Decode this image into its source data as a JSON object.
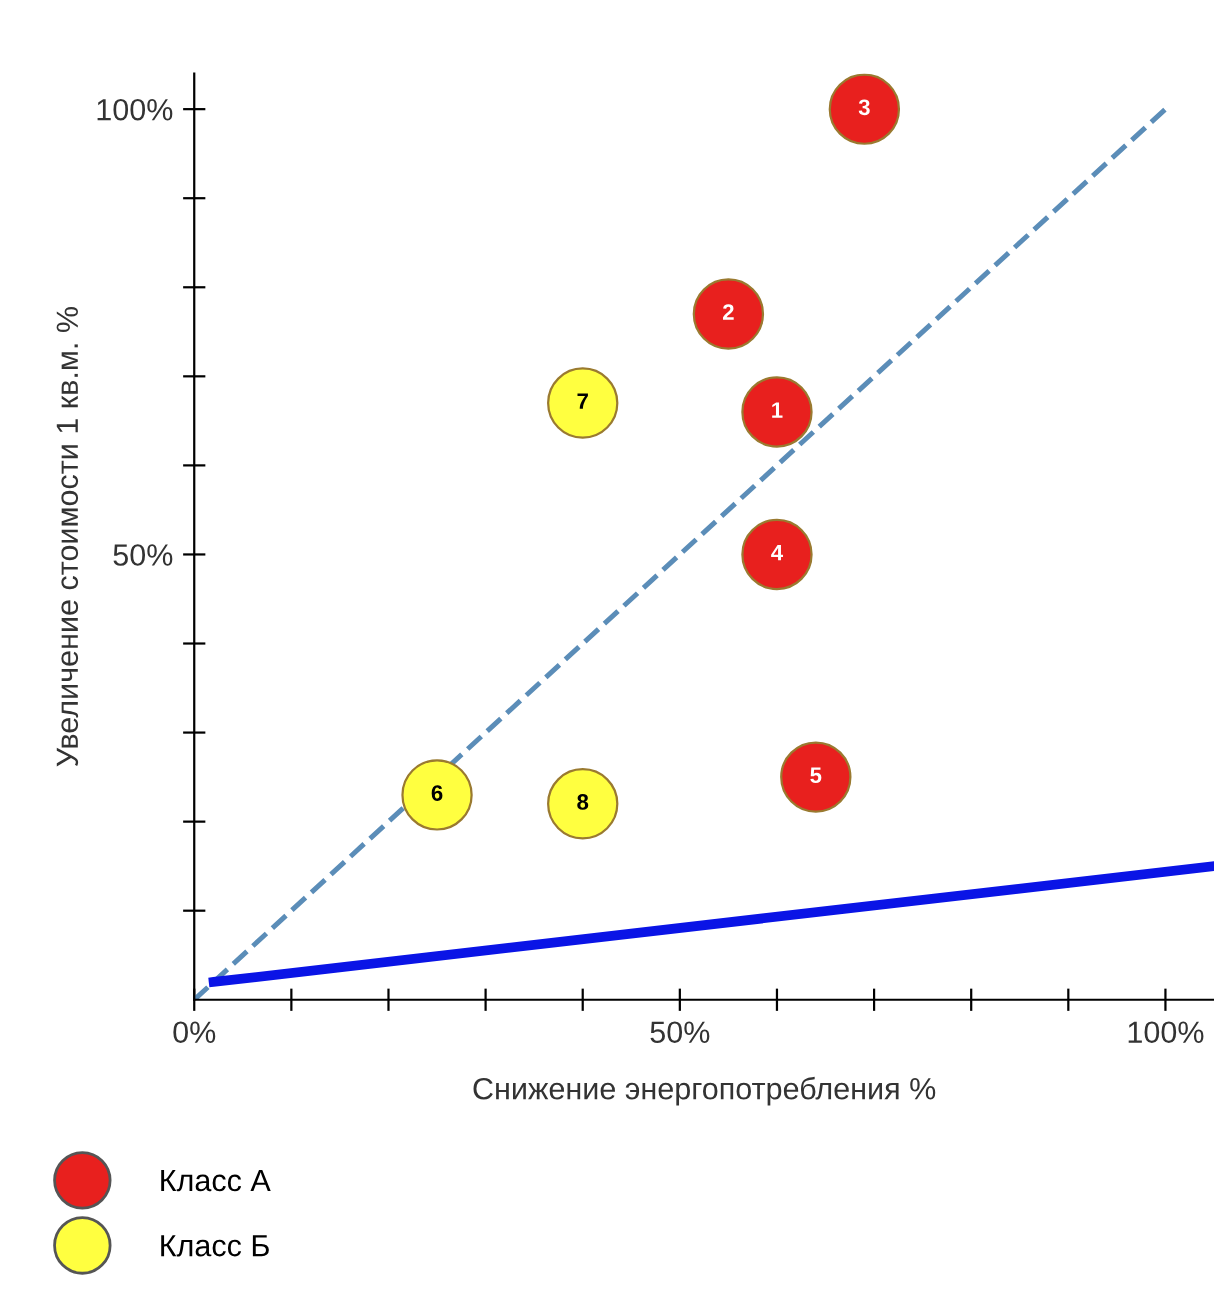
{
  "chart_data": {
    "type": "scatter",
    "xlabel": "Снижение энергопотребления %",
    "ylabel": "Увеличение стоимости 1 кв.м. %",
    "xlim": [
      0,
      105
    ],
    "ylim": [
      0,
      104
    ],
    "xticks": [
      {
        "value": 0,
        "label": "0%"
      },
      {
        "value": 10,
        "label": null
      },
      {
        "value": 20,
        "label": null
      },
      {
        "value": 30,
        "label": null
      },
      {
        "value": 40,
        "label": null
      },
      {
        "value": 50,
        "label": "50%"
      },
      {
        "value": 60,
        "label": null
      },
      {
        "value": 70,
        "label": null
      },
      {
        "value": 80,
        "label": null
      },
      {
        "value": 90,
        "label": null
      },
      {
        "value": 100,
        "label": "100%"
      }
    ],
    "yticks": [
      {
        "value": 10,
        "label": null
      },
      {
        "value": 20,
        "label": null
      },
      {
        "value": 30,
        "label": null
      },
      {
        "value": 40,
        "label": null
      },
      {
        "value": 50,
        "label": "50%"
      },
      {
        "value": 60,
        "label": null
      },
      {
        "value": 70,
        "label": null
      },
      {
        "value": 80,
        "label": null
      },
      {
        "value": 90,
        "label": null
      },
      {
        "value": 100,
        "label": "100%"
      }
    ],
    "annotations": [
      {
        "text": "1",
        "x": 60,
        "y": 66
      },
      {
        "text": "2",
        "x": 55,
        "y": 77
      },
      {
        "text": "3",
        "x": 69,
        "y": 100
      },
      {
        "text": "4",
        "x": 60,
        "y": 50
      },
      {
        "text": "5",
        "x": 64,
        "y": 25
      },
      {
        "text": "6",
        "x": 25,
        "y": 23
      },
      {
        "text": "7",
        "x": 40,
        "y": 67
      },
      {
        "text": "8",
        "x": 40,
        "y": 22
      }
    ],
    "grid": false,
    "legend": "bottom left",
    "marker": "circle",
    "series": [
      {
        "name": "Класс А",
        "color": "#e8201e",
        "x": [
          60,
          55,
          69,
          60,
          64
        ],
        "values": [
          66,
          77,
          100,
          50,
          25
        ]
      },
      {
        "name": "Класс Б",
        "color": "#ffff40",
        "x": [
          25,
          40,
          40
        ],
        "values": [
          23,
          67,
          22
        ]
      },
      {
        "type": "line",
        "color": "#5b8db8",
        "line_style": "dashed",
        "marker": "none",
        "x": [
          0,
          100
        ],
        "values": [
          0,
          100
        ]
      },
      {
        "type": "line",
        "color": "#0a14e6",
        "line_style": "solid",
        "marker": "none",
        "x": [
          2,
          105
        ],
        "values": [
          2,
          15
        ]
      }
    ]
  }
}
